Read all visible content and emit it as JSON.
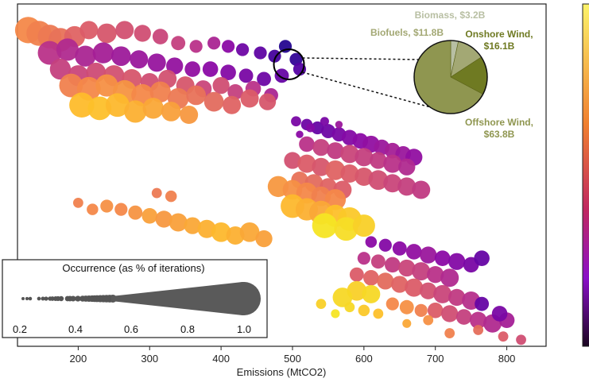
{
  "chart_data": {
    "type": "scatter",
    "xlabel": "Emissions (MtCO2)",
    "xlim": [
      115,
      855
    ],
    "xticks": [
      200,
      300,
      400,
      500,
      600,
      700,
      800
    ],
    "ylabel": "",
    "y_ticks_visible": false,
    "grid": false,
    "colormap": "plasma-inferno (dark purple → orange → yellow)",
    "size_legend": {
      "title": "Occurrence (as % of iterations)",
      "ticks": [
        "0.2",
        "0.4",
        "0.6",
        "0.8",
        "1.0"
      ],
      "placement": "bottom-left"
    },
    "inset_pie": {
      "placement": "top-right",
      "slices": [
        {
          "name": "Biomass",
          "label": "Biomass, $3.2B",
          "value": 3.2,
          "color": "#b8bfa3"
        },
        {
          "name": "Biofuels",
          "label": "Biofuels, $11.8B",
          "value": 11.8,
          "color": "#a3a874"
        },
        {
          "name": "Onshore Wind",
          "label": "Onshore Wind,\n$16.1B",
          "value": 16.1,
          "color": "#6f7a22"
        },
        {
          "name": "Offshore Wind",
          "label": "Offshore Wind,\n$63.8B",
          "value": 63.8,
          "color": "#8f9650"
        }
      ],
      "highlighted_point": {
        "x": 495,
        "y": 0.815
      }
    },
    "points": [
      [
        130,
        0.92,
        0.8,
        0.72
      ],
      [
        145,
        0.91,
        0.75,
        0.7
      ],
      [
        160,
        0.9,
        0.7,
        0.68
      ],
      [
        175,
        0.89,
        0.7,
        0.66
      ],
      [
        195,
        0.9,
        0.6,
        0.62
      ],
      [
        215,
        0.92,
        0.5,
        0.6
      ],
      [
        240,
        0.91,
        0.55,
        0.58
      ],
      [
        265,
        0.92,
        0.5,
        0.56
      ],
      [
        290,
        0.91,
        0.45,
        0.55
      ],
      [
        315,
        0.9,
        0.4,
        0.52
      ],
      [
        340,
        0.88,
        0.35,
        0.5
      ],
      [
        365,
        0.87,
        0.3,
        0.45
      ],
      [
        390,
        0.88,
        0.3,
        0.4
      ],
      [
        410,
        0.87,
        0.3,
        0.3
      ],
      [
        430,
        0.86,
        0.3,
        0.22
      ],
      [
        455,
        0.85,
        0.3,
        0.18
      ],
      [
        475,
        0.84,
        0.3,
        0.12
      ],
      [
        490,
        0.87,
        0.3,
        0.05
      ],
      [
        505,
        0.83,
        0.3,
        0.08
      ],
      [
        160,
        0.85,
        0.7,
        0.45
      ],
      [
        185,
        0.86,
        0.65,
        0.42
      ],
      [
        210,
        0.84,
        0.6,
        0.4
      ],
      [
        235,
        0.85,
        0.6,
        0.38
      ],
      [
        260,
        0.84,
        0.55,
        0.36
      ],
      [
        285,
        0.83,
        0.5,
        0.35
      ],
      [
        310,
        0.82,
        0.5,
        0.34
      ],
      [
        335,
        0.81,
        0.45,
        0.33
      ],
      [
        360,
        0.8,
        0.4,
        0.32
      ],
      [
        385,
        0.8,
        0.4,
        0.3
      ],
      [
        410,
        0.79,
        0.4,
        0.28
      ],
      [
        435,
        0.78,
        0.35,
        0.25
      ],
      [
        460,
        0.77,
        0.35,
        0.22
      ],
      [
        485,
        0.78,
        0.35,
        0.2
      ],
      [
        510,
        0.8,
        0.3,
        0.15
      ],
      [
        175,
        0.8,
        0.6,
        0.5
      ],
      [
        200,
        0.78,
        0.6,
        0.52
      ],
      [
        225,
        0.79,
        0.55,
        0.54
      ],
      [
        250,
        0.78,
        0.6,
        0.56
      ],
      [
        275,
        0.77,
        0.55,
        0.58
      ],
      [
        300,
        0.76,
        0.5,
        0.55
      ],
      [
        325,
        0.77,
        0.5,
        0.56
      ],
      [
        350,
        0.75,
        0.5,
        0.58
      ],
      [
        375,
        0.74,
        0.45,
        0.52
      ],
      [
        400,
        0.75,
        0.45,
        0.55
      ],
      [
        420,
        0.73,
        0.4,
        0.5
      ],
      [
        445,
        0.74,
        0.4,
        0.45
      ],
      [
        470,
        0.72,
        0.35,
        0.4
      ],
      [
        190,
        0.75,
        0.7,
        0.7
      ],
      [
        215,
        0.74,
        0.7,
        0.72
      ],
      [
        240,
        0.75,
        0.65,
        0.74
      ],
      [
        265,
        0.73,
        0.7,
        0.75
      ],
      [
        290,
        0.72,
        0.65,
        0.72
      ],
      [
        315,
        0.73,
        0.6,
        0.7
      ],
      [
        340,
        0.71,
        0.6,
        0.68
      ],
      [
        365,
        0.72,
        0.55,
        0.66
      ],
      [
        390,
        0.7,
        0.55,
        0.64
      ],
      [
        415,
        0.69,
        0.5,
        0.62
      ],
      [
        440,
        0.71,
        0.5,
        0.6
      ],
      [
        465,
        0.7,
        0.45,
        0.58
      ],
      [
        205,
        0.69,
        0.75,
        0.85
      ],
      [
        230,
        0.68,
        0.7,
        0.86
      ],
      [
        255,
        0.69,
        0.7,
        0.84
      ],
      [
        280,
        0.67,
        0.65,
        0.82
      ],
      [
        305,
        0.68,
        0.6,
        0.8
      ],
      [
        330,
        0.67,
        0.55,
        0.78
      ],
      [
        355,
        0.66,
        0.5,
        0.76
      ],
      [
        505,
        0.64,
        0.2,
        0.25
      ],
      [
        520,
        0.63,
        0.25,
        0.22
      ],
      [
        535,
        0.62,
        0.3,
        0.2
      ],
      [
        550,
        0.61,
        0.35,
        0.22
      ],
      [
        565,
        0.6,
        0.35,
        0.25
      ],
      [
        580,
        0.59,
        0.4,
        0.28
      ],
      [
        595,
        0.58,
        0.4,
        0.3
      ],
      [
        610,
        0.57,
        0.45,
        0.32
      ],
      [
        625,
        0.56,
        0.4,
        0.35
      ],
      [
        640,
        0.55,
        0.4,
        0.38
      ],
      [
        655,
        0.54,
        0.4,
        0.35
      ],
      [
        670,
        0.53,
        0.45,
        0.32
      ],
      [
        520,
        0.57,
        0.4,
        0.45
      ],
      [
        540,
        0.56,
        0.45,
        0.5
      ],
      [
        560,
        0.55,
        0.45,
        0.48
      ],
      [
        580,
        0.54,
        0.5,
        0.52
      ],
      [
        600,
        0.53,
        0.5,
        0.5
      ],
      [
        620,
        0.52,
        0.45,
        0.48
      ],
      [
        640,
        0.51,
        0.5,
        0.45
      ],
      [
        660,
        0.5,
        0.45,
        0.42
      ],
      [
        500,
        0.52,
        0.45,
        0.56
      ],
      [
        520,
        0.51,
        0.5,
        0.6
      ],
      [
        540,
        0.5,
        0.5,
        0.58
      ],
      [
        560,
        0.49,
        0.55,
        0.62
      ],
      [
        580,
        0.48,
        0.5,
        0.6
      ],
      [
        600,
        0.47,
        0.5,
        0.58
      ],
      [
        620,
        0.46,
        0.55,
        0.55
      ],
      [
        640,
        0.45,
        0.5,
        0.52
      ],
      [
        660,
        0.44,
        0.5,
        0.5
      ],
      [
        680,
        0.43,
        0.5,
        0.48
      ],
      [
        510,
        0.46,
        0.45,
        0.66
      ],
      [
        530,
        0.45,
        0.5,
        0.64
      ],
      [
        550,
        0.44,
        0.45,
        0.62
      ],
      [
        570,
        0.43,
        0.5,
        0.6
      ],
      [
        480,
        0.44,
        0.6,
        0.76
      ],
      [
        500,
        0.43,
        0.55,
        0.74
      ],
      [
        520,
        0.42,
        0.6,
        0.72
      ],
      [
        540,
        0.41,
        0.55,
        0.7
      ],
      [
        560,
        0.4,
        0.6,
        0.72
      ],
      [
        500,
        0.38,
        0.7,
        0.84
      ],
      [
        520,
        0.37,
        0.65,
        0.82
      ],
      [
        540,
        0.36,
        0.7,
        0.8
      ],
      [
        560,
        0.35,
        0.65,
        0.86
      ],
      [
        580,
        0.34,
        0.7,
        0.88
      ],
      [
        545,
        0.32,
        0.75,
        0.95
      ],
      [
        575,
        0.31,
        0.7,
        0.93
      ],
      [
        600,
        0.32,
        0.65,
        0.9
      ],
      [
        200,
        0.39,
        0.2,
        0.7
      ],
      [
        220,
        0.37,
        0.25,
        0.72
      ],
      [
        240,
        0.38,
        0.3,
        0.74
      ],
      [
        260,
        0.37,
        0.3,
        0.72
      ],
      [
        280,
        0.36,
        0.35,
        0.75
      ],
      [
        300,
        0.35,
        0.4,
        0.78
      ],
      [
        320,
        0.34,
        0.45,
        0.76
      ],
      [
        340,
        0.33,
        0.5,
        0.78
      ],
      [
        360,
        0.32,
        0.45,
        0.8
      ],
      [
        380,
        0.31,
        0.5,
        0.82
      ],
      [
        400,
        0.3,
        0.55,
        0.84
      ],
      [
        420,
        0.29,
        0.5,
        0.82
      ],
      [
        440,
        0.3,
        0.55,
        0.8
      ],
      [
        460,
        0.28,
        0.45,
        0.78
      ],
      [
        310,
        0.42,
        0.2,
        0.68
      ],
      [
        330,
        0.41,
        0.25,
        0.7
      ],
      [
        610,
        0.27,
        0.25,
        0.3
      ],
      [
        630,
        0.26,
        0.3,
        0.28
      ],
      [
        650,
        0.25,
        0.35,
        0.3
      ],
      [
        670,
        0.24,
        0.4,
        0.32
      ],
      [
        690,
        0.23,
        0.45,
        0.35
      ],
      [
        710,
        0.22,
        0.4,
        0.3
      ],
      [
        730,
        0.21,
        0.45,
        0.28
      ],
      [
        750,
        0.2,
        0.4,
        0.25
      ],
      [
        765,
        0.22,
        0.4,
        0.2
      ],
      [
        600,
        0.22,
        0.3,
        0.45
      ],
      [
        620,
        0.21,
        0.35,
        0.5
      ],
      [
        640,
        0.2,
        0.4,
        0.48
      ],
      [
        660,
        0.19,
        0.45,
        0.52
      ],
      [
        680,
        0.18,
        0.5,
        0.5
      ],
      [
        700,
        0.17,
        0.45,
        0.45
      ],
      [
        720,
        0.16,
        0.5,
        0.42
      ],
      [
        590,
        0.17,
        0.35,
        0.6
      ],
      [
        610,
        0.16,
        0.4,
        0.62
      ],
      [
        630,
        0.15,
        0.45,
        0.64
      ],
      [
        650,
        0.14,
        0.45,
        0.62
      ],
      [
        670,
        0.13,
        0.5,
        0.6
      ],
      [
        690,
        0.12,
        0.45,
        0.56
      ],
      [
        710,
        0.11,
        0.5,
        0.52
      ],
      [
        730,
        0.1,
        0.45,
        0.48
      ],
      [
        750,
        0.09,
        0.5,
        0.44
      ],
      [
        590,
        0.12,
        0.55,
        0.9
      ],
      [
        610,
        0.11,
        0.5,
        0.92
      ],
      [
        570,
        0.1,
        0.55,
        0.92
      ],
      [
        700,
        0.06,
        0.4,
        0.6
      ],
      [
        720,
        0.05,
        0.45,
        0.55
      ],
      [
        740,
        0.04,
        0.4,
        0.5
      ],
      [
        760,
        0.03,
        0.45,
        0.45
      ],
      [
        780,
        0.02,
        0.5,
        0.42
      ],
      [
        800,
        0.03,
        0.4,
        0.38
      ],
      [
        765,
        0.08,
        0.35,
        0.2
      ],
      [
        790,
        0.05,
        0.4,
        0.25
      ],
      [
        640,
        0.08,
        0.3,
        0.72
      ],
      [
        660,
        0.07,
        0.35,
        0.74
      ],
      [
        680,
        0.06,
        0.3,
        0.7
      ],
      [
        620,
        0.05,
        0.2,
        0.86
      ],
      [
        600,
        0.06,
        0.25,
        0.88
      ],
      [
        580,
        0.07,
        0.2,
        0.92
      ],
      [
        560,
        0.05,
        0.15,
        0.95
      ],
      [
        540,
        0.08,
        0.2,
        0.9
      ],
      [
        660,
        0.02,
        0.15,
        0.8
      ],
      [
        690,
        0.03,
        0.2,
        0.74
      ],
      [
        720,
        -0.01,
        0.2,
        0.7
      ],
      [
        760,
        0.0,
        0.2,
        0.65
      ],
      [
        795,
        -0.02,
        0.2,
        0.6
      ],
      [
        820,
        -0.03,
        0.2,
        0.55
      ],
      [
        510,
        0.6,
        0.1,
        0.3
      ],
      [
        525,
        0.62,
        0.15,
        0.28
      ],
      [
        545,
        0.64,
        0.15,
        0.25
      ],
      [
        565,
        0.63,
        0.1,
        0.35
      ]
    ]
  }
}
